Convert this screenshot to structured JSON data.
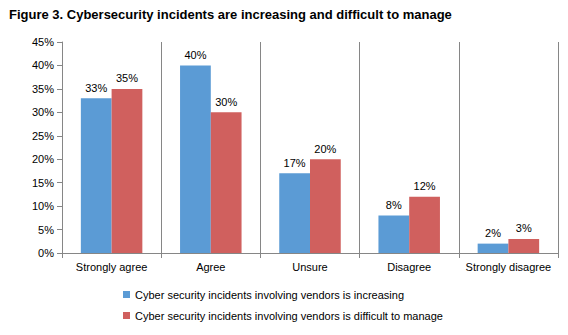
{
  "chart_data": {
    "type": "bar",
    "title": "Figure 3. Cybersecurity incidents are increasing and difficult to manage",
    "categories": [
      "Strongly agree",
      "Agree",
      "Unsure",
      "Disagree",
      "Strongly disagree"
    ],
    "series": [
      {
        "name": "Cyber security incidents involving vendors is increasing",
        "color": "#5b9bd5",
        "values": [
          33,
          40,
          17,
          8,
          2
        ],
        "value_labels": [
          "33%",
          "40%",
          "17%",
          "8%",
          "2%"
        ]
      },
      {
        "name": "Cyber security incidents involving vendors is difficult to manage",
        "color": "#d0605e",
        "values": [
          35,
          30,
          20,
          12,
          3
        ],
        "value_labels": [
          "35%",
          "30%",
          "20%",
          "12%",
          "3%"
        ]
      }
    ],
    "ylim": [
      0,
      45
    ],
    "yticks": [
      {
        "value": 0,
        "label": "0%"
      },
      {
        "value": 5,
        "label": "5%"
      },
      {
        "value": 10,
        "label": "10%"
      },
      {
        "value": 15,
        "label": "15%"
      },
      {
        "value": 20,
        "label": "20%"
      },
      {
        "value": 25,
        "label": "25%"
      },
      {
        "value": 30,
        "label": "30%"
      },
      {
        "value": 35,
        "label": "35%"
      },
      {
        "value": 40,
        "label": "40%"
      },
      {
        "value": 45,
        "label": "45%"
      }
    ],
    "data_labels": true,
    "legend": "bottom"
  }
}
